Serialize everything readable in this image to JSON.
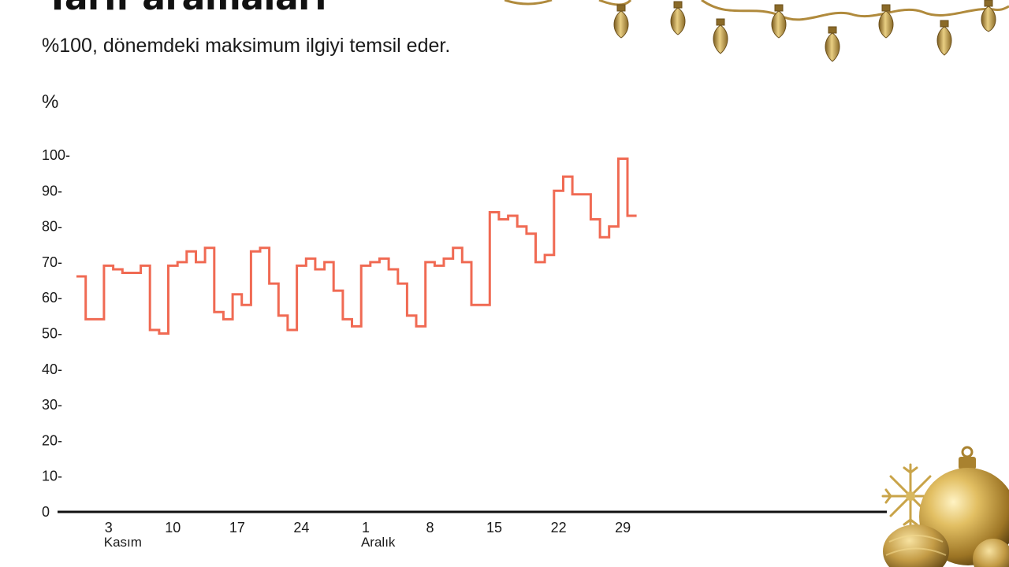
{
  "title": "Tarif aramaları",
  "subtitle": "%100, dönemdeki maksimum ilgiyi temsil eder.",
  "unit_label": "%",
  "colors": {
    "line": "#F06A53",
    "axis": "#111111",
    "gold": "#C9A449"
  },
  "decorations": [
    "string-lights-icon",
    "christmas-ornaments-icon"
  ],
  "chart_data": {
    "type": "line",
    "step": true,
    "title": "Tarif aramaları",
    "subtitle": "%100, dönemdeki maksimum ilgiyi temsil eder.",
    "ylabel": "%",
    "ylim": [
      0,
      100
    ],
    "yticks": [
      0,
      10,
      20,
      30,
      40,
      50,
      60,
      70,
      80,
      90,
      100
    ],
    "ytick_labels": [
      "0",
      "10-",
      "20-",
      "30-",
      "40-",
      "50-",
      "60-",
      "70-",
      "80-",
      "90-",
      "100-"
    ],
    "x_ticks": [
      {
        "day": 3,
        "label": "3",
        "sublabel": "Kasım"
      },
      {
        "day": 10,
        "label": "10",
        "sublabel": ""
      },
      {
        "day": 17,
        "label": "17",
        "sublabel": ""
      },
      {
        "day": 24,
        "label": "24",
        "sublabel": ""
      },
      {
        "day": 31,
        "label": "1",
        "sublabel": "Aralık"
      },
      {
        "day": 38,
        "label": "8",
        "sublabel": ""
      },
      {
        "day": 45,
        "label": "15",
        "sublabel": ""
      },
      {
        "day": 52,
        "label": "22",
        "sublabel": ""
      },
      {
        "day": 59,
        "label": "29",
        "sublabel": ""
      }
    ],
    "x_start": 0,
    "series": [
      {
        "values": [
          66,
          54,
          54,
          69,
          68,
          67,
          67,
          69,
          51,
          50,
          69,
          70,
          73,
          70,
          74,
          56,
          54,
          61,
          58,
          73,
          74,
          64,
          55,
          51,
          69,
          71,
          68,
          70,
          62,
          54,
          52,
          69,
          70,
          71,
          68,
          64,
          55,
          52,
          70,
          69,
          71,
          74,
          70,
          58,
          58,
          84,
          82,
          83,
          80,
          78,
          70,
          72,
          90,
          94,
          89,
          89,
          82,
          77,
          80,
          99,
          83
        ]
      }
    ]
  }
}
